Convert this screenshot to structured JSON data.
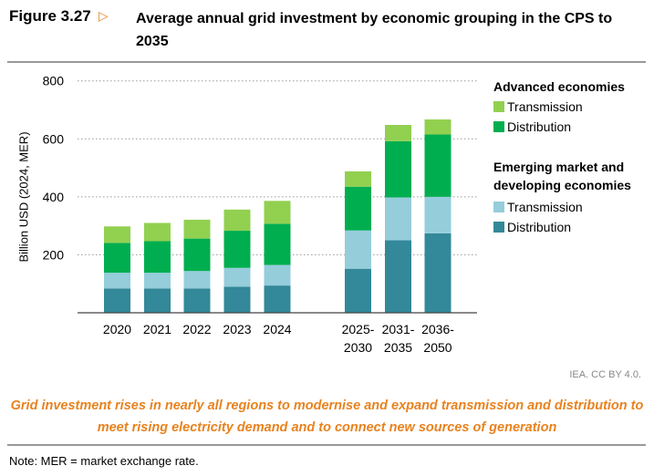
{
  "figure": {
    "number": "Figure 3.27",
    "arrow_icon": "triangle-right-icon",
    "title": "Average annual grid investment by economic grouping in the CPS to 2035"
  },
  "chart_data": {
    "type": "bar",
    "stacked": true,
    "ylabel": "Billion USD (2024, MER)",
    "ylim": [
      0,
      800
    ],
    "yticks": [
      200,
      400,
      600,
      800
    ],
    "grid": true,
    "legend_position": "right",
    "categories": [
      "2020",
      "2021",
      "2022",
      "2023",
      "2024",
      "2025-\n2030",
      "2031-\n2035",
      "2036-\n2050"
    ],
    "category_labels": [
      [
        "2020"
      ],
      [
        "2021"
      ],
      [
        "2022"
      ],
      [
        "2023"
      ],
      [
        "2024"
      ],
      [
        "2025-",
        "2030"
      ],
      [
        "2031-",
        "2035"
      ],
      [
        "2036-",
        "2050"
      ]
    ],
    "legend_groups": [
      {
        "title": "Advanced economies",
        "items": [
          "Transmission",
          "Distribution"
        ]
      },
      {
        "title": "Emerging market and developing economies",
        "title_lines": [
          "Emerging market and",
          "developing economies"
        ],
        "items": [
          "Transmission",
          "Distribution"
        ]
      }
    ],
    "series": [
      {
        "group": "Emerging market and developing economies",
        "name": "Distribution",
        "color": "#338899",
        "values": [
          84,
          84,
          84,
          90,
          94,
          152,
          250,
          274
        ]
      },
      {
        "group": "Emerging market and developing economies",
        "name": "Transmission",
        "color": "#95cddb",
        "values": [
          54,
          54,
          60,
          65,
          71,
          132,
          148,
          126
        ]
      },
      {
        "group": "Advanced economies",
        "name": "Distribution",
        "color": "#00ae4f",
        "values": [
          103,
          109,
          112,
          128,
          142,
          151,
          194,
          215
        ]
      },
      {
        "group": "Advanced economies",
        "name": "Transmission",
        "color": "#92d050",
        "values": [
          57,
          63,
          65,
          73,
          79,
          53,
          56,
          52
        ]
      }
    ]
  },
  "credit": "IEA. CC BY 4.0.",
  "caption": "Grid investment rises in nearly all regions to modernise and expand transmission and distribution to meet rising electricity demand and to connect new sources of generation",
  "note": "Note: MER = market exchange rate."
}
